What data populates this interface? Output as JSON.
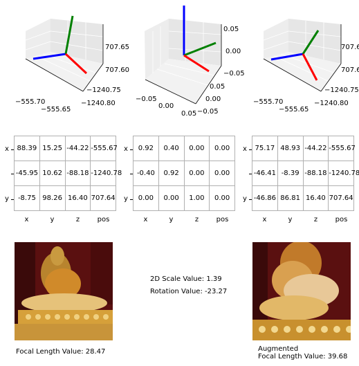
{
  "axes3d": [
    {
      "zticks": [
        "707.65",
        "707.60"
      ],
      "xticks": [
        "−555.70",
        "−555.65"
      ],
      "yticks": [
        "−1240.75",
        "−1240.80"
      ]
    },
    {
      "zticks": [
        "0.05",
        "0.00",
        "−0.05"
      ],
      "xticks": [
        "−0.05",
        "0.00",
        "0.05"
      ],
      "yticks": [
        "0.05",
        "0.00",
        "−0.05"
      ]
    },
    {
      "zticks": [
        "707.6",
        "707.6"
      ],
      "xticks": [
        "−555.70",
        "−555.65"
      ],
      "yticks": [
        "−1240.75",
        "−1240.80"
      ]
    }
  ],
  "axis_colors": {
    "x": "#ff0000",
    "y": "#008000",
    "z": "#0000ff"
  },
  "tables": [
    {
      "row_labels": [
        "x",
        "",
        "y"
      ],
      "col_labels": [
        "x",
        "y",
        "z",
        "pos"
      ],
      "rows": [
        [
          "88.39",
          "15.25",
          "-44.22",
          "-555.67"
        ],
        [
          "-45.95",
          "10.62",
          "-88.18",
          "-1240.78"
        ],
        [
          "-8.75",
          "98.26",
          "16.40",
          "707.64"
        ]
      ]
    },
    {
      "row_labels": [
        "x",
        "",
        "y"
      ],
      "col_labels": [
        "x",
        "y",
        "z",
        "pos"
      ],
      "rows": [
        [
          "0.92",
          "0.40",
          "0.00",
          "0.00"
        ],
        [
          "-0.40",
          "0.92",
          "0.00",
          "0.00"
        ],
        [
          "0.00",
          "0.00",
          "1.00",
          "0.00"
        ]
      ]
    },
    {
      "row_labels": [
        "x",
        "",
        "y"
      ],
      "col_labels": [
        "x",
        "y",
        "z",
        "pos"
      ],
      "rows": [
        [
          "75.17",
          "48.93",
          "-44.22",
          "-555.67"
        ],
        [
          "-46.41",
          "-8.39",
          "-88.18",
          "-1240.78"
        ],
        [
          "-46.86",
          "86.81",
          "16.40",
          "707.64"
        ]
      ]
    }
  ],
  "captions": {
    "left_focal": "Focal Length Value: 28.47",
    "scale": "2D Scale Value: 1.39",
    "rotation": "Rotation Value: -23.27",
    "right_title": "Augmented",
    "right_focal": "Focal Length Value: 39.68"
  },
  "chart_data": {
    "type": "table",
    "tables": [
      {
        "columns": [
          "x",
          "y",
          "z",
          "pos"
        ],
        "rows": [
          [
            88.39,
            15.25,
            -44.22,
            -555.67
          ],
          [
            -45.95,
            10.62,
            -88.18,
            -1240.78
          ],
          [
            -8.75,
            98.26,
            16.4,
            707.64
          ]
        ]
      },
      {
        "columns": [
          "x",
          "y",
          "z",
          "pos"
        ],
        "rows": [
          [
            0.92,
            0.4,
            0.0,
            0.0
          ],
          [
            -0.4,
            0.92,
            0.0,
            0.0
          ],
          [
            0.0,
            0.0,
            1.0,
            0.0
          ]
        ]
      },
      {
        "columns": [
          "x",
          "y",
          "z",
          "pos"
        ],
        "rows": [
          [
            75.17,
            48.93,
            -44.22,
            -555.67
          ],
          [
            -46.41,
            -8.39,
            -88.18,
            -1240.78
          ],
          [
            -46.86,
            86.81,
            16.4,
            707.64
          ]
        ]
      }
    ],
    "scale_2d": 1.39,
    "rotation": -23.27,
    "focal_length_original": 28.47,
    "focal_length_augmented": 39.68
  }
}
